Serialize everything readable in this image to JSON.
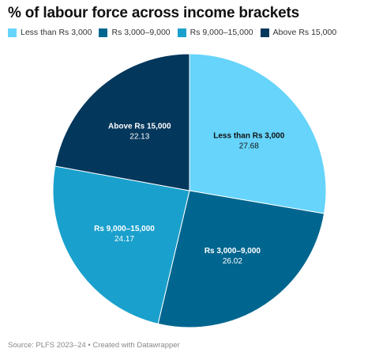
{
  "title": "% of labour force across income brackets",
  "source": "Source: PLFS 2023–24 • Created with Datawrapper",
  "chart_data": {
    "type": "pie",
    "title": "% of labour force across income brackets",
    "categories": [
      "Less than Rs 3,000",
      "Rs 3,000–9,000",
      "Rs 9,000–15,000",
      "Above Rs 15,000"
    ],
    "values": [
      27.68,
      26.02,
      24.17,
      22.13
    ],
    "value_labels": [
      "27.68",
      "26.02",
      "24.17",
      "22.13"
    ],
    "colors": [
      "#66d4fb",
      "#01668f",
      "#1aa0cc",
      "#04375c"
    ],
    "label_colors": [
      "#111111",
      "#ffffff",
      "#ffffff",
      "#ffffff"
    ],
    "legend_position": "top-left",
    "start": "12 o'clock, clockwise"
  }
}
